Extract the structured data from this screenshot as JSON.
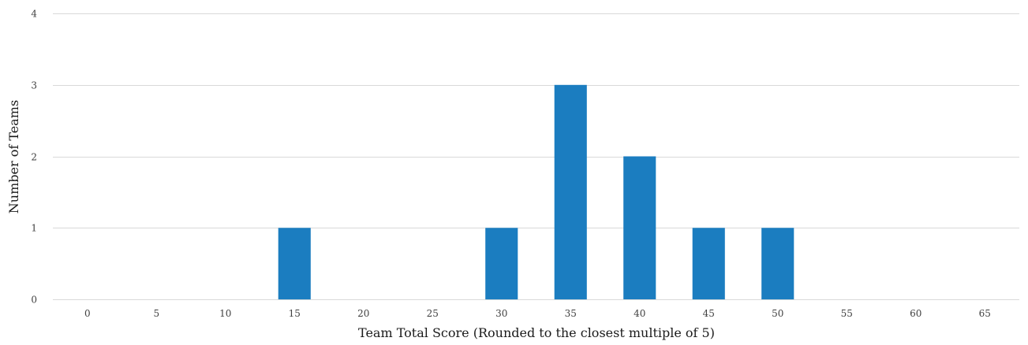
{
  "chart_data": {
    "type": "bar",
    "title": "",
    "xlabel": "Team Total Score (Rounded to the closest multiple of 5)",
    "ylabel": "Number of Teams",
    "categories": [
      "0",
      "5",
      "10",
      "15",
      "20",
      "25",
      "30",
      "35",
      "40",
      "45",
      "50",
      "55",
      "60",
      "65"
    ],
    "values": [
      0,
      0,
      0,
      1,
      0,
      0,
      1,
      3,
      2,
      1,
      1,
      0,
      0,
      0
    ],
    "ylim": [
      0,
      4
    ],
    "yticks": [
      "0",
      "1",
      "2",
      "3",
      "4"
    ],
    "grid": true,
    "legend": "none",
    "colors": {
      "bar": "#1b7dc0",
      "grid": "#d9d9d9"
    }
  }
}
